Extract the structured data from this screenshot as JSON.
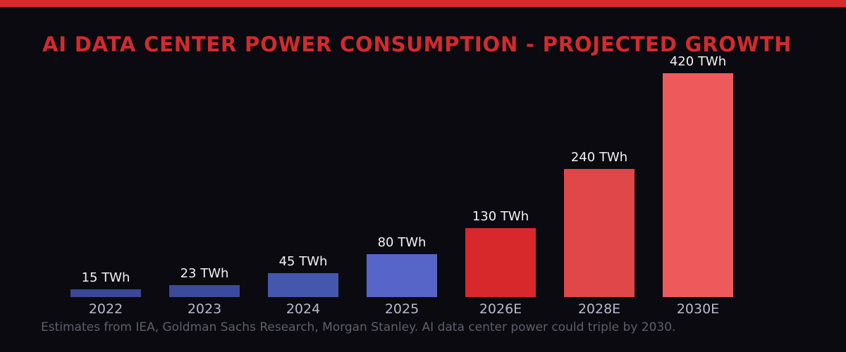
{
  "colors": {
    "background": "#0a0a10",
    "accent_bar": "#d32b2e",
    "title_text": "#d32a2e",
    "value_label_text": "#f2f2f4",
    "axis_label_text": "#b9b9cb",
    "footer_text": "#5f5f6b"
  },
  "header": {
    "title": "AI DATA CENTER POWER CONSUMPTION - PROJECTED GROWTH"
  },
  "footer": {
    "note": "Estimates from IEA, Goldman Sachs Research, Morgan Stanley. AI data center power could triple by 2030."
  },
  "chart_data": {
    "type": "bar",
    "title": "AI DATA CENTER POWER CONSUMPTION - PROJECTED GROWTH",
    "categories": [
      "2022",
      "2023",
      "2024",
      "2025",
      "2026E",
      "2028E",
      "2030E"
    ],
    "values": [
      15,
      23,
      45,
      80,
      130,
      240,
      420
    ],
    "value_labels": [
      "15 TWh",
      "23 TWh",
      "45 TWh",
      "80 TWh",
      "130 TWh",
      "240 TWh",
      "420 TWh"
    ],
    "bar_colors": [
      "#3a4897",
      "#3c4a9b",
      "#4557ad",
      "#5765c9",
      "#d7282c",
      "#e04749",
      "#ee5a5c"
    ],
    "unit": "TWh",
    "xlabel": "",
    "ylabel": "",
    "ylim": [
      0,
      440
    ],
    "grid": false,
    "legend": false,
    "annotation": "Estimates from IEA, Goldman Sachs Research, Morgan Stanley. AI data center power could triple by 2030."
  }
}
